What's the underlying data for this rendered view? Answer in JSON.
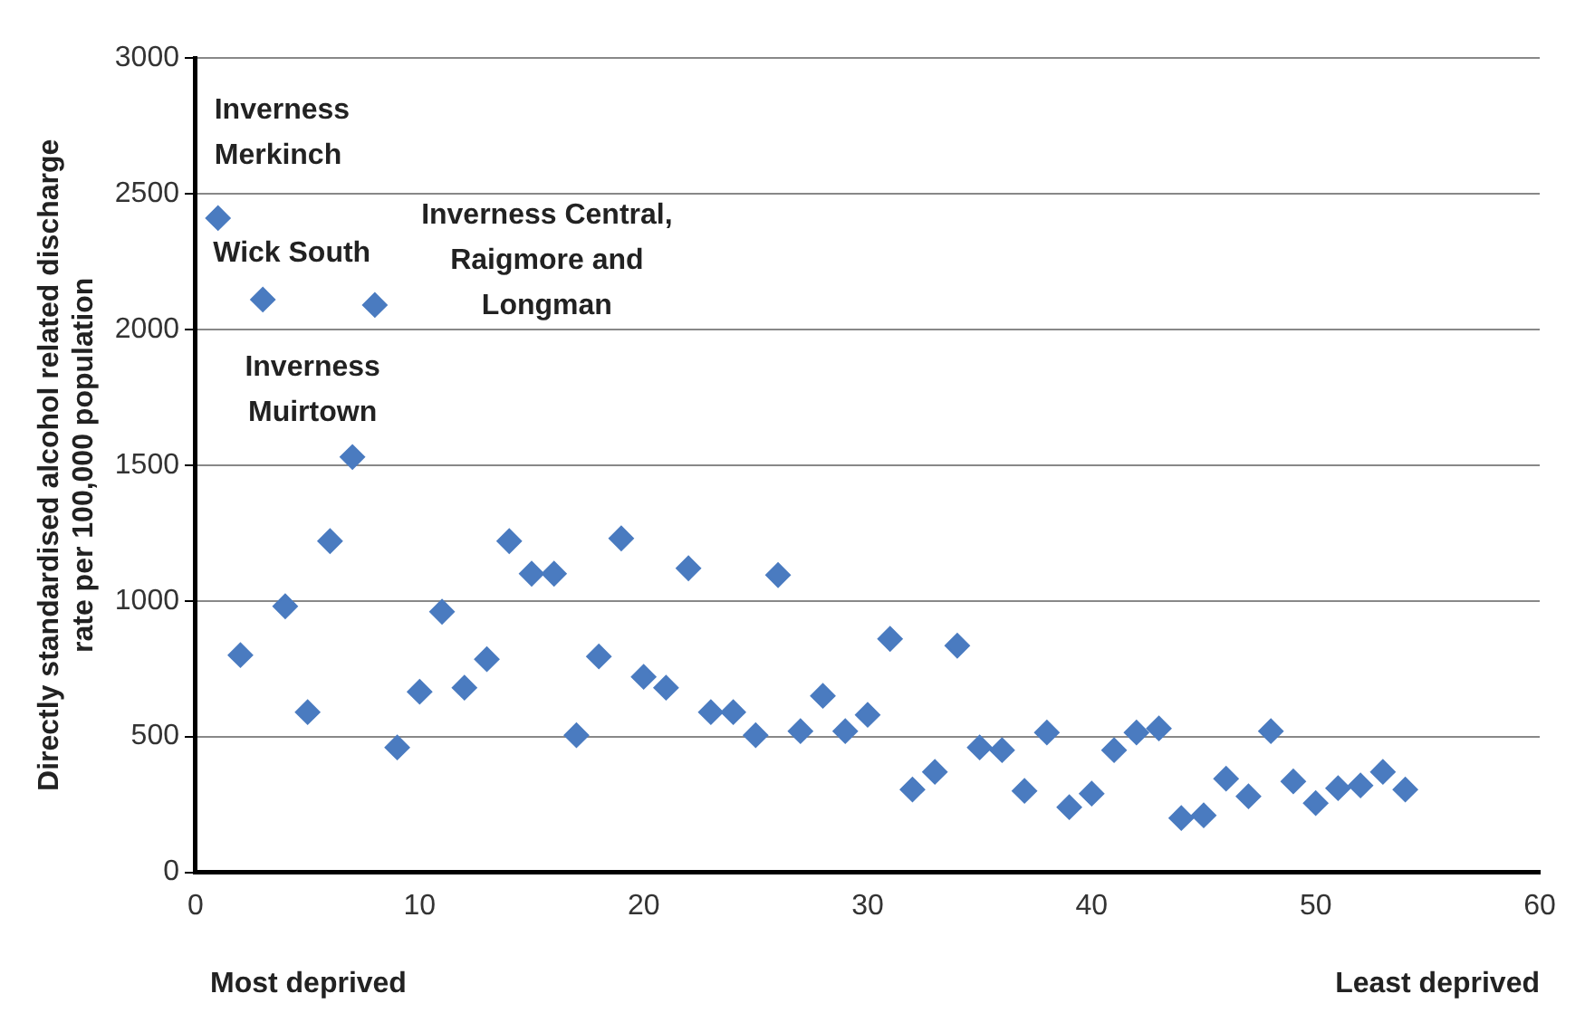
{
  "chart_data": {
    "type": "scatter",
    "ylabel": "Directly standardised alcohol related discharge\nrate per 100,000 population",
    "xlim": [
      0,
      60
    ],
    "xticks": [
      0,
      10,
      20,
      30,
      40,
      50,
      60
    ],
    "ylim": [
      0,
      3000
    ],
    "yticks": [
      0,
      500,
      1000,
      1500,
      2000,
      2500,
      3000
    ],
    "grid": "y",
    "marker": "diamond",
    "legend": false,
    "series": [
      {
        "color": "#4a7bc0",
        "x": [
          1,
          2,
          3,
          4,
          5,
          6,
          7,
          8,
          9,
          10,
          11,
          12,
          13,
          14,
          15,
          16,
          17,
          18,
          19,
          20,
          21,
          22,
          23,
          24,
          25,
          26,
          27,
          28,
          29,
          30,
          31,
          32,
          33,
          34,
          35,
          36,
          37,
          38,
          39,
          40,
          41,
          42,
          43,
          44,
          45,
          46,
          47,
          48,
          49,
          50,
          51,
          52,
          53,
          54
        ],
        "values": [
          2410,
          800,
          2110,
          980,
          590,
          1220,
          1530,
          2090,
          460,
          665,
          960,
          680,
          785,
          1220,
          1100,
          1100,
          505,
          795,
          1230,
          720,
          680,
          1120,
          590,
          590,
          505,
          1095,
          520,
          650,
          520,
          580,
          860,
          305,
          370,
          835,
          460,
          450,
          300,
          515,
          240,
          290,
          450,
          515,
          530,
          200,
          210,
          345,
          280,
          520,
          335,
          255,
          310,
          320,
          370,
          305
        ]
      }
    ],
    "annotations": [
      {
        "text": "Inverness\nMerkinch",
        "x": 1,
        "y": 2410
      },
      {
        "text": "Wick South",
        "x": 3,
        "y": 2110
      },
      {
        "text": "Inverness Central,\nRaigmore and\nLongman",
        "x": 8,
        "y": 2090
      },
      {
        "text": "Inverness\nMuirtown",
        "x": 7,
        "y": 1530
      },
      "Most deprived",
      "Least deprived"
    ]
  }
}
